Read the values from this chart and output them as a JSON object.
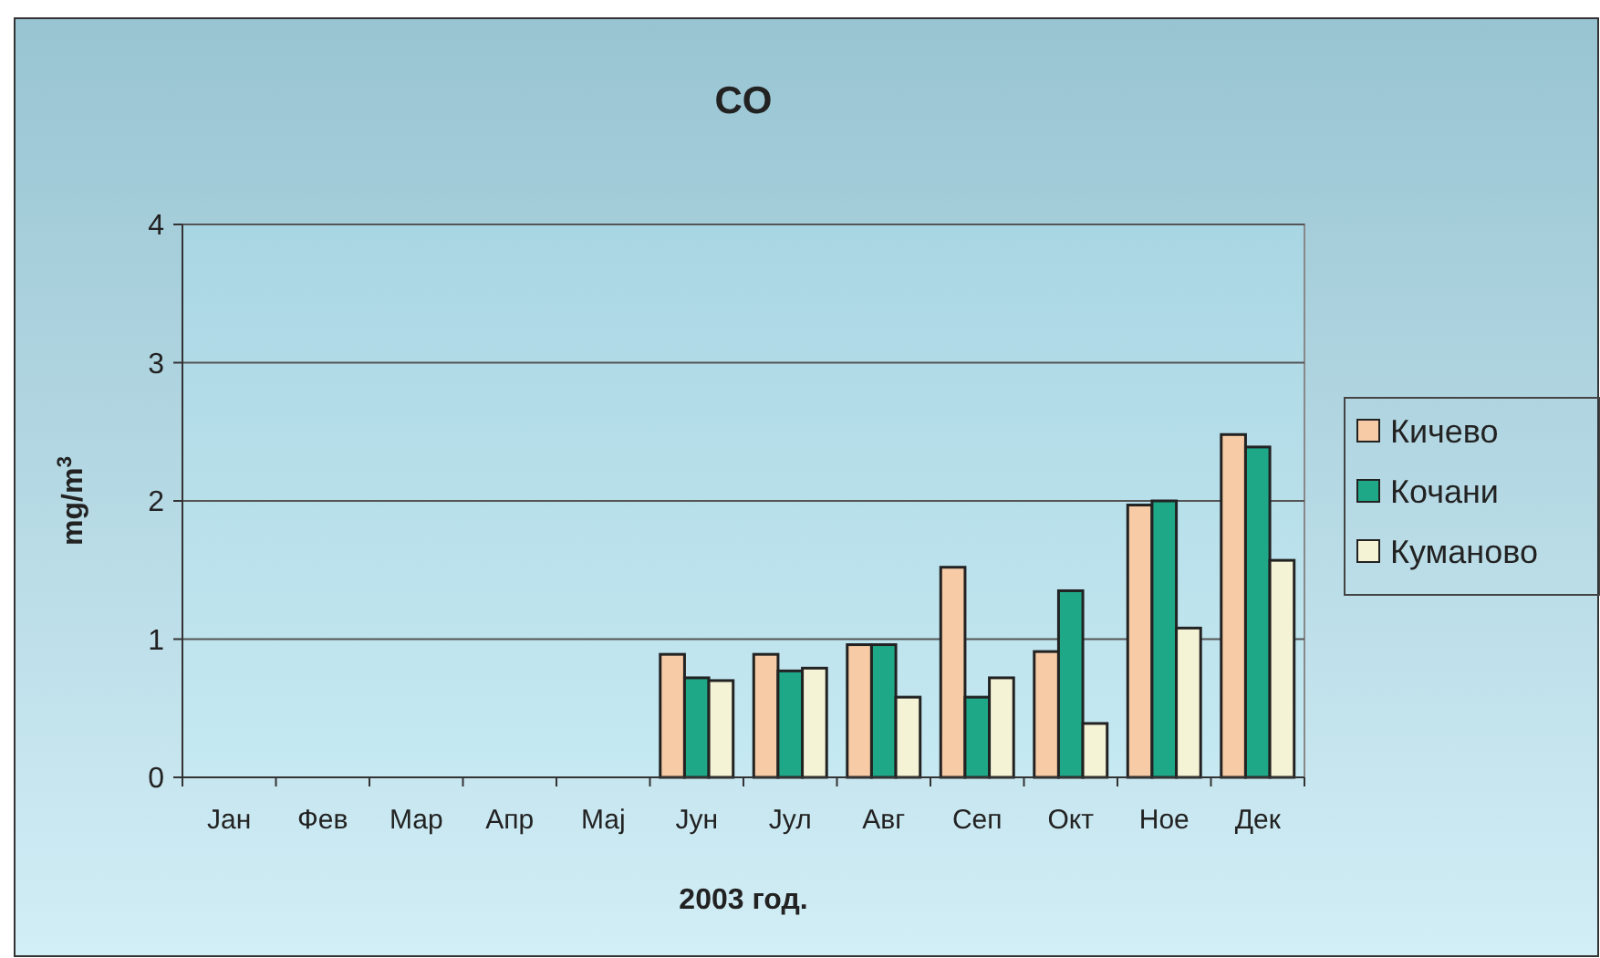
{
  "chart_data": {
    "type": "bar",
    "title": "CO",
    "xlabel": "2003 год.",
    "ylabel": "mg/m$^{3}$",
    "categories": [
      "Јан",
      "Фев",
      "Мар",
      "Апр",
      "Мај",
      "Јун",
      "Јул",
      "Авг",
      "Сеп",
      "Окт",
      "Ное",
      "Дек"
    ],
    "series": [
      {
        "name": "Кичево",
        "color": "#f7cba5",
        "values": [
          null,
          null,
          null,
          null,
          null,
          0.89,
          0.89,
          0.96,
          1.52,
          0.91,
          1.97,
          2.48
        ]
      },
      {
        "name": "Кочани",
        "color": "#1fa887",
        "values": [
          null,
          null,
          null,
          null,
          null,
          0.72,
          0.77,
          0.96,
          0.58,
          1.35,
          2.0,
          2.39
        ]
      },
      {
        "name": "Куманово",
        "color": "#f5f3d5",
        "values": [
          null,
          null,
          null,
          null,
          null,
          0.7,
          0.79,
          0.58,
          0.72,
          0.39,
          1.08,
          1.57
        ]
      }
    ],
    "ylim": [
      0,
      4
    ],
    "yticks": [
      0,
      1,
      2,
      3,
      4
    ],
    "grid": "y",
    "legend": "right"
  }
}
